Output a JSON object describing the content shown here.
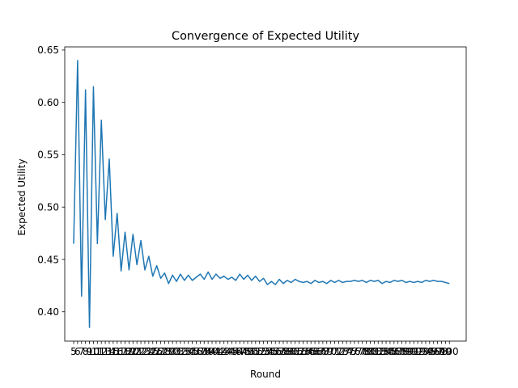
{
  "chart_data": {
    "type": "line",
    "title": "Convergence of Expected Utility",
    "xlabel": "Round",
    "ylabel": "Expected Utility",
    "xlim": [
      2.75,
      104.25
    ],
    "ylim": [
      0.372,
      0.653
    ],
    "yticks": [
      "0.40",
      "0.45",
      "0.50",
      "0.55",
      "0.60",
      "0.65"
    ],
    "x": [
      5,
      6,
      7,
      8,
      9,
      10,
      11,
      12,
      13,
      14,
      15,
      16,
      17,
      18,
      19,
      20,
      21,
      22,
      23,
      24,
      25,
      26,
      27,
      28,
      29,
      30,
      31,
      32,
      33,
      34,
      35,
      36,
      37,
      38,
      39,
      40,
      41,
      42,
      43,
      44,
      45,
      46,
      47,
      48,
      49,
      50,
      51,
      52,
      53,
      54,
      55,
      56,
      57,
      58,
      59,
      60,
      61,
      62,
      63,
      64,
      65,
      66,
      67,
      68,
      69,
      70,
      71,
      72,
      73,
      74,
      75,
      76,
      77,
      78,
      79,
      80,
      81,
      82,
      83,
      84,
      85,
      86,
      87,
      88,
      89,
      90,
      91,
      92,
      93,
      94,
      95,
      96,
      97,
      98,
      99,
      100
    ],
    "series": [
      {
        "color": "#1f77b4",
        "values": [
          0.465,
          0.64,
          0.415,
          0.612,
          0.385,
          0.615,
          0.465,
          0.583,
          0.488,
          0.546,
          0.453,
          0.494,
          0.439,
          0.476,
          0.44,
          0.474,
          0.445,
          0.468,
          0.44,
          0.453,
          0.434,
          0.444,
          0.432,
          0.437,
          0.427,
          0.435,
          0.429,
          0.436,
          0.43,
          0.435,
          0.43,
          0.433,
          0.436,
          0.431,
          0.438,
          0.431,
          0.436,
          0.432,
          0.434,
          0.431,
          0.433,
          0.43,
          0.436,
          0.431,
          0.435,
          0.43,
          0.434,
          0.429,
          0.432,
          0.426,
          0.429,
          0.426,
          0.431,
          0.427,
          0.43,
          0.428,
          0.431,
          0.429,
          0.428,
          0.429,
          0.427,
          0.43,
          0.428,
          0.429,
          0.427,
          0.43,
          0.428,
          0.43,
          0.428,
          0.429,
          0.429,
          0.43,
          0.429,
          0.43,
          0.428,
          0.43,
          0.429,
          0.43,
          0.427,
          0.429,
          0.428,
          0.43,
          0.429,
          0.43,
          0.428,
          0.429,
          0.428,
          0.429,
          0.428,
          0.43,
          0.429,
          0.43,
          0.429,
          0.429,
          0.428,
          0.427
        ]
      }
    ],
    "grid": false
  }
}
